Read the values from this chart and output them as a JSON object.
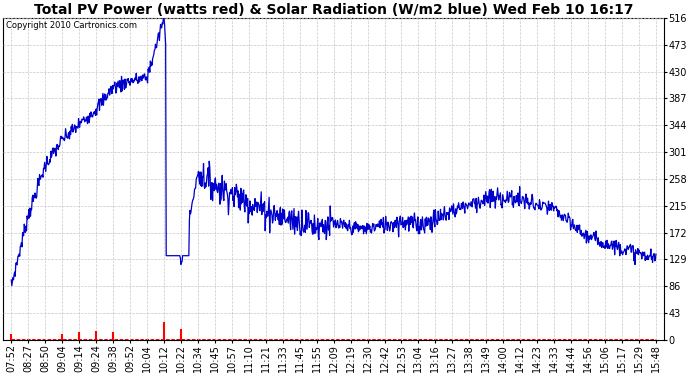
{
  "title": "Total PV Power (watts red) & Solar Radiation (W/m2 blue) Wed Feb 10 16:17",
  "copyright": "Copyright 2010 Cartronics.com",
  "ylim": [
    0.0,
    516.0
  ],
  "yticks": [
    0.0,
    43.0,
    86.0,
    129.0,
    172.0,
    215.0,
    258.0,
    301.0,
    344.0,
    387.0,
    430.0,
    473.0,
    516.0
  ],
  "xtick_labels": [
    "07:52",
    "08:27",
    "08:50",
    "09:04",
    "09:14",
    "09:24",
    "09:38",
    "09:52",
    "10:04",
    "10:12",
    "10:22",
    "10:34",
    "10:45",
    "10:57",
    "11:10",
    "11:21",
    "11:33",
    "11:45",
    "11:55",
    "12:09",
    "12:19",
    "12:30",
    "12:42",
    "12:53",
    "13:04",
    "13:16",
    "13:27",
    "13:38",
    "13:49",
    "14:00",
    "14:12",
    "14:23",
    "14:33",
    "14:44",
    "14:56",
    "15:06",
    "15:17",
    "15:29",
    "15:48"
  ],
  "bg_color": "#ffffff",
  "grid_color": "#c8c8c8",
  "blue_color": "#0000cc",
  "red_color": "#ff0000",
  "title_fontsize": 10,
  "tick_fontsize": 7,
  "copyright_fontsize": 6
}
